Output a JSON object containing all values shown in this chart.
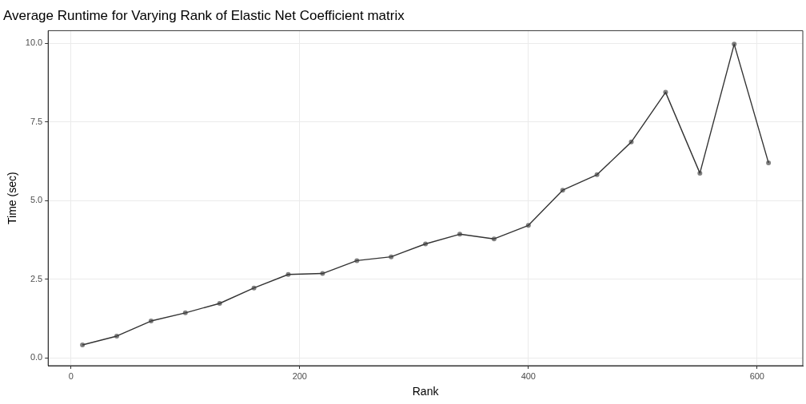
{
  "chart_data": {
    "type": "line",
    "title": "Average Runtime for Varying Rank of Elastic Net Coefficient matrix",
    "xlabel": "Rank",
    "ylabel": "Time (sec)",
    "x": [
      10,
      40,
      70,
      100,
      130,
      160,
      190,
      220,
      250,
      280,
      310,
      340,
      370,
      400,
      430,
      460,
      490,
      520,
      550,
      580,
      610
    ],
    "series": [
      {
        "color": "#333333",
        "values": [
          0.41,
          0.69,
          1.17,
          1.43,
          1.73,
          2.22,
          2.65,
          2.68,
          3.09,
          3.21,
          3.62,
          3.93,
          3.78,
          4.21,
          5.33,
          5.82,
          6.86,
          8.44,
          5.87,
          9.97,
          6.2
        ]
      }
    ],
    "xlim": [
      -20,
      640
    ],
    "xticks": [
      0,
      200,
      400,
      600
    ],
    "ylim": [
      -0.25,
      10.4
    ],
    "yticks": [
      {
        "value": 0,
        "label": "0.0"
      },
      {
        "value": 2.5,
        "label": "2.5"
      },
      {
        "value": 5,
        "label": "5.0"
      },
      {
        "value": 7.5,
        "label": "7.5"
      },
      {
        "value": 10,
        "label": "10.0"
      }
    ],
    "grid": true,
    "legend": false,
    "marker": "circle",
    "line_style": "solid"
  }
}
